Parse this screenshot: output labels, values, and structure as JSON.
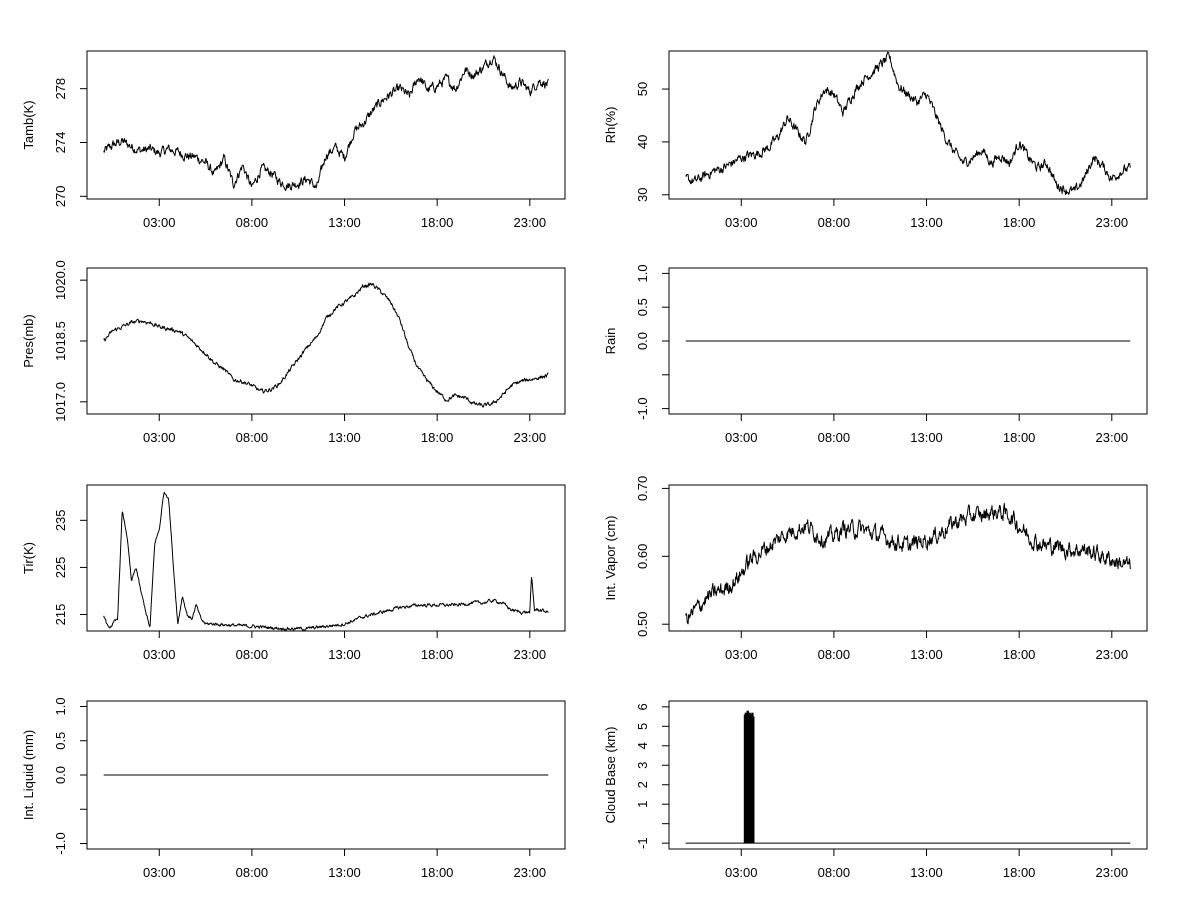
{
  "chart_data": [
    {
      "type": "line",
      "id": "tamb",
      "ylabel": "Tamb(K)",
      "ylim": [
        269.8,
        280.8
      ],
      "yticks": [
        270,
        274,
        278
      ],
      "ytick_labels": [
        "270",
        "274",
        "278"
      ],
      "xticks": [
        3,
        8,
        13,
        18,
        23
      ],
      "xtick_labels": [
        "03:00",
        "08:00",
        "13:00",
        "18:00",
        "23:00"
      ],
      "xlim": [
        -0.9,
        24.9
      ],
      "x": [
        0.0,
        0.5,
        1.0,
        1.5,
        2.0,
        2.5,
        3.0,
        3.5,
        4.0,
        4.5,
        5.0,
        5.5,
        6.0,
        6.5,
        7.0,
        7.5,
        8.0,
        8.5,
        9.0,
        9.5,
        10.0,
        10.5,
        11.0,
        11.5,
        12.0,
        12.5,
        13.0,
        13.5,
        14.0,
        14.5,
        15.0,
        15.5,
        16.0,
        16.5,
        17.0,
        17.5,
        18.0,
        18.5,
        19.0,
        19.5,
        20.0,
        20.5,
        21.0,
        21.5,
        22.0,
        22.5,
        23.0,
        23.5,
        24.0
      ],
      "y": [
        273.3,
        273.8,
        274.1,
        273.7,
        273.4,
        273.5,
        273.2,
        273.5,
        273.3,
        273.0,
        272.9,
        272.5,
        271.6,
        272.8,
        270.9,
        272.3,
        270.6,
        272.0,
        271.8,
        271.1,
        270.8,
        271.0,
        271.3,
        270.6,
        273.1,
        273.6,
        272.9,
        274.8,
        275.4,
        276.3,
        277.1,
        277.6,
        278.0,
        277.4,
        278.9,
        277.9,
        278.2,
        278.7,
        278.0,
        279.4,
        279.0,
        279.6,
        280.4,
        279.2,
        278.0,
        278.5,
        277.8,
        278.6,
        278.3
      ]
    },
    {
      "type": "line",
      "id": "rh",
      "ylabel": "Rh(%)",
      "ylim": [
        29.2,
        57.2
      ],
      "yticks": [
        30,
        40,
        50
      ],
      "ytick_labels": [
        "30",
        "40",
        "50"
      ],
      "xticks": [
        3,
        8,
        13,
        18,
        23
      ],
      "xtick_labels": [
        "03:00",
        "08:00",
        "13:00",
        "18:00",
        "23:00"
      ],
      "xlim": [
        -0.9,
        24.9
      ],
      "x": [
        0.0,
        0.5,
        1.0,
        1.5,
        2.0,
        2.5,
        3.0,
        3.5,
        4.0,
        4.5,
        5.0,
        5.5,
        6.0,
        6.5,
        7.0,
        7.5,
        8.0,
        8.5,
        9.0,
        9.5,
        10.0,
        10.5,
        11.0,
        11.5,
        12.0,
        12.5,
        13.0,
        13.5,
        14.0,
        14.5,
        15.0,
        15.5,
        16.0,
        16.5,
        17.0,
        17.5,
        18.0,
        18.5,
        19.0,
        19.5,
        20.0,
        20.5,
        21.0,
        21.5,
        22.0,
        22.5,
        23.0,
        23.5,
        24.0
      ],
      "y": [
        33.0,
        32.5,
        33.5,
        34.5,
        35.0,
        36.0,
        37.0,
        37.5,
        38.0,
        39.0,
        41.0,
        44.5,
        42.0,
        40.0,
        46.5,
        50.0,
        49.0,
        45.5,
        49.0,
        51.5,
        53.0,
        54.5,
        56.0,
        50.5,
        49.0,
        47.5,
        49.0,
        45.0,
        41.0,
        38.0,
        36.0,
        37.0,
        38.5,
        36.0,
        37.5,
        36.0,
        40.0,
        37.0,
        35.0,
        36.0,
        32.0,
        31.0,
        30.5,
        33.0,
        37.0,
        35.5,
        33.0,
        34.5,
        35.0
      ]
    },
    {
      "type": "line",
      "id": "pres",
      "ylabel": "Pres(mb)",
      "ylim": [
        1016.7,
        1020.3
      ],
      "yticks": [
        1017.0,
        1018.5,
        1020.0
      ],
      "ytick_labels": [
        "1017.0",
        "1018.5",
        "1020.0"
      ],
      "xticks": [
        3,
        8,
        13,
        18,
        23
      ],
      "xtick_labels": [
        "03:00",
        "08:00",
        "13:00",
        "18:00",
        "23:00"
      ],
      "xlim": [
        -0.9,
        24.9
      ],
      "x": [
        0.0,
        0.5,
        1.0,
        1.5,
        2.0,
        2.5,
        3.0,
        3.5,
        4.0,
        4.5,
        5.0,
        5.5,
        6.0,
        6.5,
        7.0,
        7.5,
        8.0,
        8.5,
        9.0,
        9.5,
        10.0,
        10.5,
        11.0,
        11.5,
        12.0,
        12.5,
        13.0,
        13.5,
        14.0,
        14.5,
        15.0,
        15.5,
        16.0,
        16.5,
        17.0,
        17.5,
        18.0,
        18.5,
        19.0,
        19.5,
        20.0,
        20.5,
        21.0,
        21.5,
        22.0,
        22.5,
        23.0,
        23.5,
        24.0
      ],
      "y": [
        1018.5,
        1018.75,
        1018.85,
        1018.95,
        1019.0,
        1018.95,
        1018.85,
        1018.8,
        1018.75,
        1018.6,
        1018.4,
        1018.2,
        1017.95,
        1017.8,
        1017.55,
        1017.5,
        1017.4,
        1017.25,
        1017.3,
        1017.45,
        1017.75,
        1018.05,
        1018.35,
        1018.6,
        1019.05,
        1019.3,
        1019.45,
        1019.6,
        1019.85,
        1019.9,
        1019.7,
        1019.45,
        1019.0,
        1018.3,
        1017.8,
        1017.5,
        1017.25,
        1017.05,
        1017.15,
        1017.1,
        1016.95,
        1016.9,
        1016.95,
        1017.15,
        1017.4,
        1017.5,
        1017.55,
        1017.6,
        1017.65
      ]
    },
    {
      "type": "line",
      "id": "rain",
      "ylabel": "Rain",
      "ylim": [
        -1.08,
        1.08
      ],
      "yticks": [
        -1.0,
        -0.5,
        0.0,
        0.5,
        1.0
      ],
      "ytick_labels": [
        "-1.0",
        "",
        "0.0",
        "0.5",
        "1.0"
      ],
      "xticks": [
        3,
        8,
        13,
        18,
        23
      ],
      "xtick_labels": [
        "03:00",
        "08:00",
        "13:00",
        "18:00",
        "23:00"
      ],
      "xlim": [
        -0.9,
        24.9
      ],
      "x": [
        0,
        24
      ],
      "y": [
        0,
        0
      ]
    },
    {
      "type": "line",
      "id": "tir",
      "ylabel": "Tir(K)",
      "ylim": [
        211.5,
        242.5
      ],
      "yticks": [
        215,
        225,
        235
      ],
      "ytick_labels": [
        "215",
        "225",
        "235"
      ],
      "xticks": [
        3,
        8,
        13,
        18,
        23
      ],
      "xtick_labels": [
        "03:00",
        "08:00",
        "13:00",
        "18:00",
        "23:00"
      ],
      "xlim": [
        -0.9,
        24.9
      ],
      "x": [
        0.0,
        0.25,
        0.5,
        0.75,
        1.0,
        1.25,
        1.5,
        1.75,
        2.0,
        2.25,
        2.5,
        2.75,
        3.0,
        3.25,
        3.5,
        3.75,
        4.0,
        4.25,
        4.5,
        4.75,
        5.0,
        5.25,
        5.5,
        6.0,
        7.0,
        8.0,
        9.0,
        10.0,
        11.0,
        12.0,
        13.0,
        14.0,
        15.0,
        16.0,
        17.0,
        18.0,
        19.0,
        20.0,
        20.5,
        21.0,
        21.5,
        22.0,
        22.5,
        23.0,
        23.1,
        23.25,
        23.5,
        24.0
      ],
      "y": [
        215,
        212,
        213,
        214,
        237,
        232,
        222,
        225,
        220,
        216,
        212,
        230,
        233,
        241,
        240,
        226,
        213,
        219,
        215,
        214,
        217,
        214,
        213,
        213,
        212.7,
        212.5,
        212.2,
        212,
        212,
        212.5,
        213,
        214.5,
        215.5,
        216.5,
        217,
        217,
        217,
        217.5,
        217.5,
        218,
        217.5,
        216,
        215.5,
        215.5,
        223,
        216,
        216,
        215.5
      ]
    },
    {
      "type": "line",
      "id": "intvapor",
      "ylabel": "Int. Vapor (cm)",
      "ylim": [
        0.49,
        0.705
      ],
      "yticks": [
        0.5,
        0.6,
        0.7
      ],
      "ytick_labels": [
        "0.50",
        "0.60",
        "0.70"
      ],
      "xticks": [
        3,
        8,
        13,
        18,
        23
      ],
      "xtick_labels": [
        "03:00",
        "08:00",
        "13:00",
        "18:00",
        "23:00"
      ],
      "xlim": [
        -0.9,
        24.9
      ],
      "x": [
        0.0,
        0.5,
        1.0,
        1.5,
        2.0,
        2.5,
        3.0,
        3.5,
        4.0,
        4.5,
        5.0,
        5.5,
        6.0,
        6.5,
        7.0,
        7.5,
        8.0,
        8.5,
        9.0,
        9.5,
        10.0,
        10.5,
        11.0,
        11.5,
        12.0,
        12.5,
        13.0,
        13.5,
        14.0,
        14.5,
        15.0,
        15.5,
        16.0,
        16.5,
        17.0,
        17.5,
        18.0,
        18.5,
        19.0,
        19.5,
        20.0,
        20.5,
        21.0,
        21.5,
        22.0,
        22.5,
        23.0,
        23.5,
        24.0
      ],
      "y": [
        0.505,
        0.52,
        0.535,
        0.545,
        0.55,
        0.56,
        0.575,
        0.595,
        0.605,
        0.615,
        0.625,
        0.635,
        0.64,
        0.645,
        0.635,
        0.625,
        0.63,
        0.64,
        0.64,
        0.64,
        0.635,
        0.63,
        0.625,
        0.62,
        0.615,
        0.62,
        0.625,
        0.63,
        0.64,
        0.65,
        0.655,
        0.66,
        0.66,
        0.665,
        0.665,
        0.66,
        0.645,
        0.63,
        0.62,
        0.615,
        0.615,
        0.61,
        0.61,
        0.61,
        0.605,
        0.6,
        0.595,
        0.59,
        0.585
      ]
    },
    {
      "type": "line",
      "id": "intliquid",
      "ylabel": "Int. Liquid (mm)",
      "ylim": [
        -1.08,
        1.08
      ],
      "yticks": [
        -1.0,
        -0.5,
        0.0,
        0.5,
        1.0
      ],
      "ytick_labels": [
        "-1.0",
        "",
        "0.0",
        "0.5",
        "1.0"
      ],
      "xticks": [
        3,
        8,
        13,
        18,
        23
      ],
      "xtick_labels": [
        "03:00",
        "08:00",
        "13:00",
        "18:00",
        "23:00"
      ],
      "xlim": [
        -0.9,
        24.9
      ],
      "x": [
        0,
        24
      ],
      "y": [
        0,
        0
      ]
    },
    {
      "type": "bar",
      "id": "cloudbase",
      "ylabel": "Cloud Base (km)",
      "ylim": [
        -1.3,
        6.3
      ],
      "yticks": [
        -1,
        0,
        1,
        2,
        3,
        4,
        5,
        6
      ],
      "ytick_labels": [
        "-1",
        "",
        "1",
        "2",
        "3",
        "4",
        "5",
        "6"
      ],
      "xticks": [
        3,
        8,
        13,
        18,
        23
      ],
      "xtick_labels": [
        "03:00",
        "08:00",
        "13:00",
        "18:00",
        "23:00"
      ],
      "xlim": [
        -0.9,
        24.9
      ],
      "baseline": -1,
      "baseline_x": [
        0,
        24
      ],
      "x": [
        3.2,
        3.25,
        3.3,
        3.35,
        3.4,
        3.45,
        3.5,
        3.55,
        3.6,
        3.65
      ],
      "values": [
        5.6,
        5.7,
        5.4,
        5.8,
        5.5,
        5.7,
        5.6,
        5.5,
        5.7,
        5.5
      ]
    }
  ]
}
